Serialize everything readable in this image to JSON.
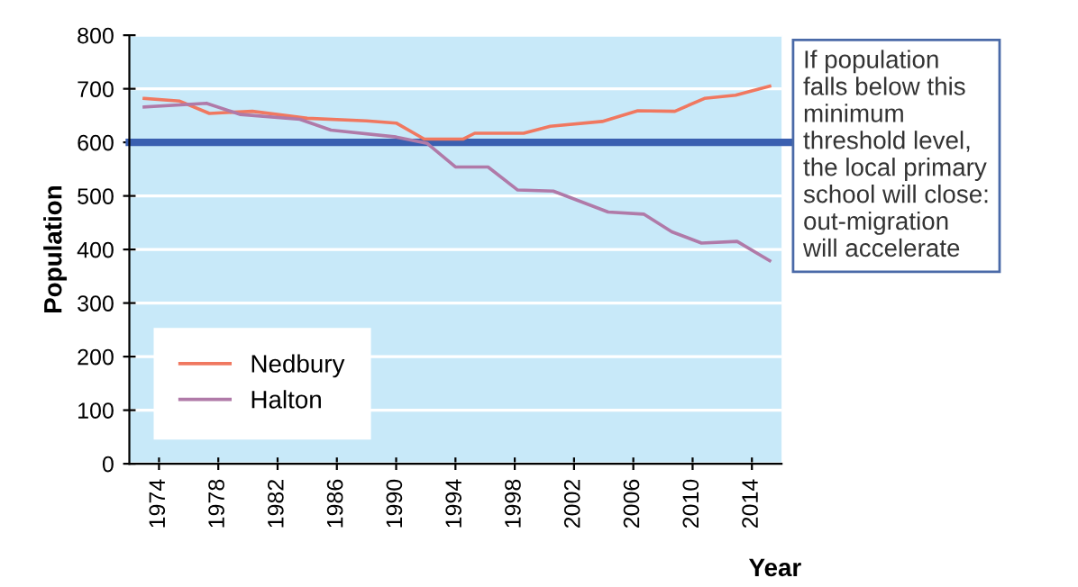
{
  "chart_data": {
    "type": "line",
    "xlabel": "Year",
    "ylabel": "Population",
    "xlim": [
      1972,
      2016
    ],
    "xticks": [
      1974,
      1978,
      1982,
      1986,
      1990,
      1994,
      1998,
      2002,
      2006,
      2010,
      2014
    ],
    "ylim": [
      0,
      800
    ],
    "yticks": [
      0,
      100,
      200,
      300,
      400,
      500,
      600,
      700,
      800
    ],
    "grid": "y",
    "legend": "bottom left",
    "series": [
      {
        "name": "Nedbury",
        "color": "#f07860",
        "x": [
          1973,
          1975.4,
          1977.4,
          1980.3,
          1984,
          1988,
          1990,
          1991.9,
          1994.5,
          1995.3,
          1998.6,
          2000.4,
          2003.9,
          2006.3,
          2008.8,
          2010.8,
          2012.9,
          2015.2
        ],
        "values": [
          682,
          677,
          654,
          658,
          645,
          640,
          636,
          606,
          606,
          617,
          617,
          630,
          639,
          659,
          658,
          682,
          688,
          705
        ]
      },
      {
        "name": "Halton",
        "color": "#b07aa8",
        "x": [
          1973,
          1977.2,
          1979.5,
          1983.5,
          1985.6,
          1990,
          1992.1,
          1994,
          1996.2,
          1998.2,
          2000.6,
          2004.3,
          2006.7,
          2008.6,
          2010.6,
          2013,
          2015.2
        ],
        "values": [
          666,
          673,
          652,
          643,
          623,
          610,
          598,
          554,
          554,
          511,
          509,
          470,
          466,
          433,
          412,
          415,
          379
        ]
      }
    ],
    "ref_lines": [
      {
        "axis": "y",
        "value": 600,
        "label": "If population\nfalls below this\nminimum\nthreshold level,\nthe local primary\nschool will close:\nout-migration\nwill accelerate",
        "color": "#3a5fb0"
      }
    ]
  }
}
